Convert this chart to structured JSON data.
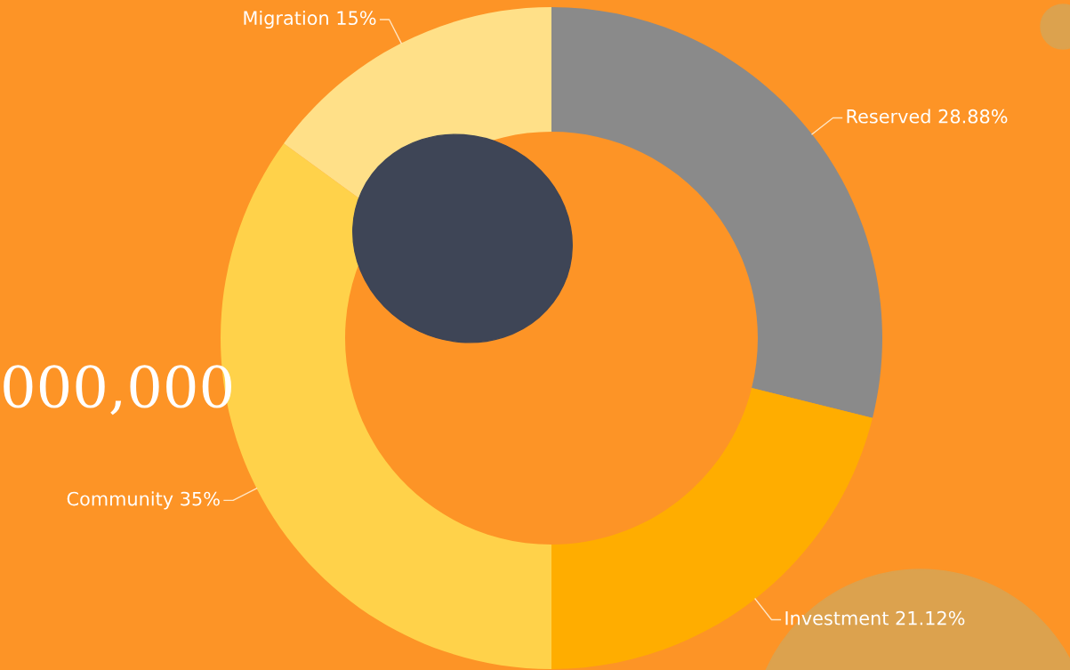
{
  "chart_data": {
    "type": "donut",
    "categories": [
      "Reserved",
      "Investment",
      "Community",
      "Migration"
    ],
    "values": [
      28.88,
      21.12,
      35,
      15
    ],
    "colors": [
      "#8a8a8a",
      "#ffad00",
      "#ffd24a",
      "#ffe088"
    ],
    "value_labels": [
      "28.88%",
      "21.12%",
      "35%",
      "15%"
    ],
    "annotations": [
      "000,000"
    ]
  }
}
